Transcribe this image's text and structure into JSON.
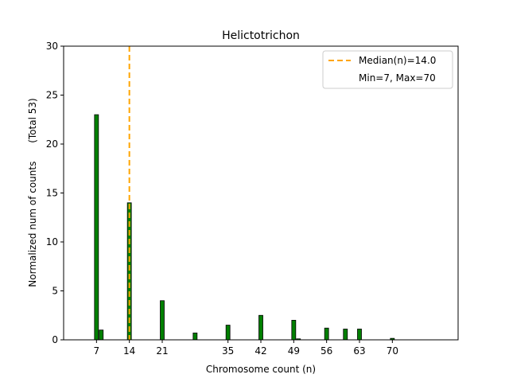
{
  "chart_data": {
    "type": "bar",
    "title": "Helictotrichon",
    "xlabel": "Chromosome count (n)",
    "ylabel": "Normalized num of counts      (Total 53)",
    "xlim": [
      0,
      84
    ],
    "ylim": [
      0,
      30
    ],
    "xticks": [
      7,
      14,
      21,
      35,
      42,
      49,
      56,
      63,
      70
    ],
    "yticks": [
      0,
      5,
      10,
      15,
      20,
      25,
      30
    ],
    "x": [
      7,
      8,
      14,
      21,
      28,
      35,
      42,
      49,
      50,
      56,
      60,
      63,
      70
    ],
    "values": [
      23,
      1,
      14,
      4,
      0.7,
      1.5,
      2.5,
      2,
      0.1,
      1.2,
      1.1,
      1.1,
      0.15
    ],
    "bar_color": "#008000",
    "median": 14.0,
    "median_color": "#FFA500",
    "legend": {
      "placement": "top-right",
      "entries": [
        "Median(n)=14.0",
        "Min=7, Max=70"
      ]
    }
  }
}
